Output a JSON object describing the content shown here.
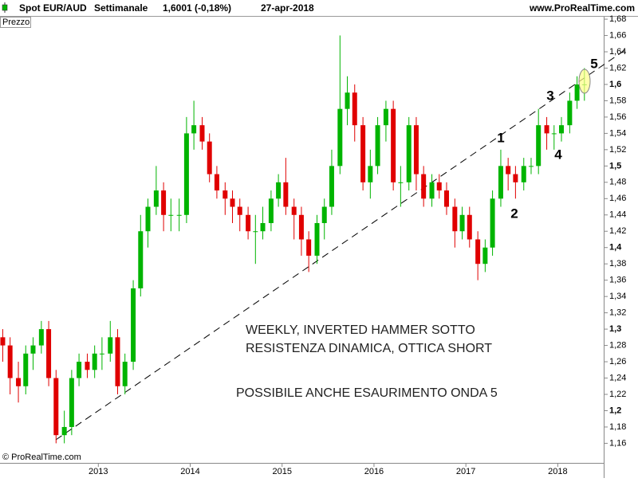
{
  "header": {
    "symbol": "Spot EUR/AUD",
    "period": "Settimanale",
    "quote": "1,6001 (-0,18%)",
    "date": "27-apr-2018",
    "site": "www.ProRealTime.com",
    "panel": "Prezzo",
    "copyright": "© ProRealTime.com"
  },
  "chart_data": {
    "type": "candlestick",
    "x": [
      2011.96,
      2012.04,
      2012.13,
      2012.21,
      2012.29,
      2012.38,
      2012.46,
      2012.54,
      2012.63,
      2012.71,
      2012.79,
      2012.88,
      2012.96,
      2013.04,
      2013.13,
      2013.21,
      2013.29,
      2013.38,
      2013.46,
      2013.54,
      2013.63,
      2013.71,
      2013.79,
      2013.88,
      2013.96,
      2014.04,
      2014.13,
      2014.21,
      2014.29,
      2014.38,
      2014.46,
      2014.54,
      2014.63,
      2014.71,
      2014.79,
      2014.88,
      2014.96,
      2015.04,
      2015.13,
      2015.21,
      2015.29,
      2015.38,
      2015.46,
      2015.54,
      2015.63,
      2015.71,
      2015.79,
      2015.88,
      2015.96,
      2016.04,
      2016.13,
      2016.21,
      2016.29,
      2016.38,
      2016.46,
      2016.54,
      2016.63,
      2016.71,
      2016.79,
      2016.88,
      2016.96,
      2017.04,
      2017.13,
      2017.21,
      2017.29,
      2017.38,
      2017.46,
      2017.54,
      2017.63,
      2017.71,
      2017.79,
      2017.88,
      2017.96,
      2018.04,
      2018.13,
      2018.21,
      2018.29
    ],
    "open": [
      1.29,
      1.28,
      1.24,
      1.23,
      1.27,
      1.28,
      1.3,
      1.24,
      1.17,
      1.18,
      1.24,
      1.26,
      1.25,
      1.27,
      1.27,
      1.29,
      1.23,
      1.26,
      1.35,
      1.42,
      1.45,
      1.47,
      1.44,
      1.44,
      1.44,
      1.54,
      1.55,
      1.53,
      1.49,
      1.47,
      1.46,
      1.45,
      1.44,
      1.42,
      1.42,
      1.43,
      1.46,
      1.48,
      1.45,
      1.44,
      1.41,
      1.39,
      1.43,
      1.45,
      1.5,
      1.57,
      1.59,
      1.55,
      1.48,
      1.5,
      1.55,
      1.57,
      1.48,
      1.48,
      1.55,
      1.49,
      1.46,
      1.48,
      1.47,
      1.45,
      1.42,
      1.44,
      1.41,
      1.38,
      1.4,
      1.46,
      1.5,
      1.49,
      1.48,
      1.5,
      1.5,
      1.55,
      1.54,
      1.54,
      1.55,
      1.58,
      1.6
    ],
    "high": [
      1.3,
      1.29,
      1.26,
      1.28,
      1.29,
      1.31,
      1.31,
      1.25,
      1.2,
      1.25,
      1.27,
      1.27,
      1.28,
      1.29,
      1.31,
      1.3,
      1.27,
      1.36,
      1.44,
      1.46,
      1.5,
      1.48,
      1.46,
      1.46,
      1.56,
      1.58,
      1.56,
      1.54,
      1.5,
      1.48,
      1.47,
      1.46,
      1.45,
      1.44,
      1.45,
      1.47,
      1.49,
      1.51,
      1.46,
      1.45,
      1.42,
      1.44,
      1.46,
      1.52,
      1.66,
      1.61,
      1.6,
      1.56,
      1.52,
      1.56,
      1.58,
      1.58,
      1.5,
      1.56,
      1.56,
      1.5,
      1.49,
      1.49,
      1.48,
      1.46,
      1.45,
      1.45,
      1.42,
      1.41,
      1.47,
      1.52,
      1.51,
      1.5,
      1.51,
      1.51,
      1.57,
      1.56,
      1.55,
      1.56,
      1.59,
      1.61,
      1.62
    ],
    "low": [
      1.26,
      1.22,
      1.21,
      1.22,
      1.25,
      1.27,
      1.23,
      1.16,
      1.16,
      1.17,
      1.23,
      1.24,
      1.24,
      1.25,
      1.26,
      1.22,
      1.22,
      1.25,
      1.34,
      1.4,
      1.44,
      1.42,
      1.42,
      1.42,
      1.43,
      1.52,
      1.52,
      1.48,
      1.46,
      1.44,
      1.43,
      1.42,
      1.41,
      1.38,
      1.41,
      1.42,
      1.45,
      1.44,
      1.41,
      1.39,
      1.37,
      1.38,
      1.41,
      1.44,
      1.49,
      1.55,
      1.53,
      1.47,
      1.46,
      1.49,
      1.53,
      1.47,
      1.45,
      1.47,
      1.47,
      1.45,
      1.45,
      1.46,
      1.44,
      1.4,
      1.41,
      1.4,
      1.36,
      1.37,
      1.39,
      1.45,
      1.47,
      1.46,
      1.47,
      1.49,
      1.49,
      1.52,
      1.52,
      1.53,
      1.54,
      1.57,
      1.58
    ],
    "close": [
      1.28,
      1.24,
      1.23,
      1.27,
      1.28,
      1.3,
      1.24,
      1.17,
      1.18,
      1.24,
      1.26,
      1.25,
      1.27,
      1.27,
      1.29,
      1.23,
      1.26,
      1.35,
      1.42,
      1.45,
      1.47,
      1.44,
      1.44,
      1.44,
      1.54,
      1.55,
      1.53,
      1.49,
      1.47,
      1.46,
      1.45,
      1.44,
      1.42,
      1.42,
      1.43,
      1.46,
      1.48,
      1.45,
      1.44,
      1.41,
      1.39,
      1.43,
      1.45,
      1.5,
      1.57,
      1.59,
      1.55,
      1.48,
      1.5,
      1.55,
      1.57,
      1.48,
      1.48,
      1.55,
      1.49,
      1.46,
      1.48,
      1.47,
      1.45,
      1.42,
      1.44,
      1.41,
      1.38,
      1.4,
      1.46,
      1.5,
      1.49,
      1.48,
      1.5,
      1.5,
      1.55,
      1.54,
      1.54,
      1.55,
      1.58,
      1.6,
      1.6001
    ],
    "up_color": "#00b400",
    "down_color": "#e00000",
    "xlim": [
      2011.93,
      2018.5
    ],
    "xticks": [
      2013,
      2014,
      2015,
      2016,
      2017,
      2018
    ],
    "ylim": [
      1.136,
      1.683
    ],
    "yticks": [
      {
        "value": 1.16,
        "label": "1,16"
      },
      {
        "value": 1.18,
        "label": "1,18"
      },
      {
        "value": 1.2,
        "label": "1,2"
      },
      {
        "value": 1.22,
        "label": "1,22"
      },
      {
        "value": 1.24,
        "label": "1,24"
      },
      {
        "value": 1.26,
        "label": "1,26"
      },
      {
        "value": 1.28,
        "label": "1,28"
      },
      {
        "value": 1.3,
        "label": "1,3"
      },
      {
        "value": 1.32,
        "label": "1,32"
      },
      {
        "value": 1.34,
        "label": "1,34"
      },
      {
        "value": 1.36,
        "label": "1,36"
      },
      {
        "value": 1.38,
        "label": "1,38"
      },
      {
        "value": 1.4,
        "label": "1,4"
      },
      {
        "value": 1.42,
        "label": "1,42"
      },
      {
        "value": 1.44,
        "label": "1,44"
      },
      {
        "value": 1.46,
        "label": "1,46"
      },
      {
        "value": 1.48,
        "label": "1,48"
      },
      {
        "value": 1.5,
        "label": "1,5"
      },
      {
        "value": 1.52,
        "label": "1,52"
      },
      {
        "value": 1.54,
        "label": "1,54"
      },
      {
        "value": 1.56,
        "label": "1,56"
      },
      {
        "value": 1.58,
        "label": "1,58"
      },
      {
        "value": 1.6,
        "label": "1,6"
      },
      {
        "value": 1.62,
        "label": "1,62"
      },
      {
        "value": 1.64,
        "label": "1,64"
      },
      {
        "value": 1.66,
        "label": "1,66"
      },
      {
        "value": 1.68,
        "label": "1,68"
      }
    ],
    "wave_labels": [
      "1",
      "2",
      "3",
      "4",
      "5"
    ],
    "annotations": [
      "WEEKLY, INVERTED HAMMER SOTTO",
      "RESISTENZA DINAMICA, OTTICA SHORT",
      "POSSIBILE ANCHE ESAURIMENTO ONDA 5"
    ]
  }
}
